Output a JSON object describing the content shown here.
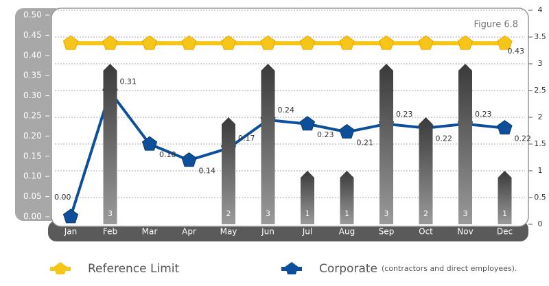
{
  "chart_data": {
    "type": "bar-line",
    "title": "Figure 6.8",
    "categories": [
      "Jan",
      "Feb",
      "Mar",
      "Apr",
      "May",
      "Jun",
      "Jul",
      "Aug",
      "Sep",
      "Oct",
      "Nov",
      "Dec"
    ],
    "series": [
      {
        "name": "Reference Limit",
        "type": "line",
        "color": "#f5c518",
        "axis": "y",
        "values": [
          0.43,
          0.43,
          0.43,
          0.43,
          0.43,
          0.43,
          0.43,
          0.43,
          0.43,
          0.43,
          0.43,
          0.43
        ]
      },
      {
        "name": "Corporate",
        "note": "(contractors and direct employees).",
        "type": "line",
        "color": "#0d4f9a",
        "axis": "y",
        "values": [
          0,
          0.31,
          0.18,
          0.14,
          0.17,
          0.24,
          0.23,
          0.21,
          0.23,
          0.22,
          0.23,
          0.22
        ],
        "value_labels": [
          "0.00",
          "0.31",
          "0.18",
          "0.14",
          "0.17",
          "0.24",
          "0.23",
          "0.21",
          "0.23",
          "0.22",
          "0.23",
          "0.22"
        ]
      },
      {
        "type": "bar",
        "color": "#555555",
        "axis": "y2",
        "values": [
          0,
          3,
          0,
          0,
          2,
          3,
          1,
          1,
          3,
          2,
          3,
          1
        ]
      }
    ],
    "ylim": [
      0,
      0.5
    ],
    "yticks": [
      {
        "value": 0,
        "label": "0.00"
      },
      0.05,
      {
        "value": 0.1,
        "label": "0.10"
      },
      0.15,
      {
        "value": 0.2,
        "label": "0.20"
      },
      0.25,
      {
        "value": 0.3,
        "label": "0.30"
      },
      0.35,
      {
        "value": 0.4,
        "label": "0.40"
      },
      0.45,
      {
        "value": 0.5,
        "label": "0.50"
      }
    ],
    "y2lim": [
      0,
      4
    ],
    "y2ticks": [
      0,
      0.5,
      1,
      1.5,
      2,
      2.5,
      3,
      3.5,
      4
    ],
    "grid": true
  }
}
